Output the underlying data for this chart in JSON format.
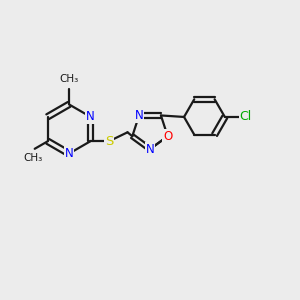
{
  "bg_color": "#ececec",
  "bond_color": "#1a1a1a",
  "N_color": "#0000ff",
  "O_color": "#ff0000",
  "S_color": "#cccc00",
  "Cl_color": "#00aa00",
  "figsize": [
    3.0,
    3.0
  ],
  "dpi": 100,
  "xlim": [
    0,
    10
  ],
  "ylim": [
    0,
    10
  ]
}
